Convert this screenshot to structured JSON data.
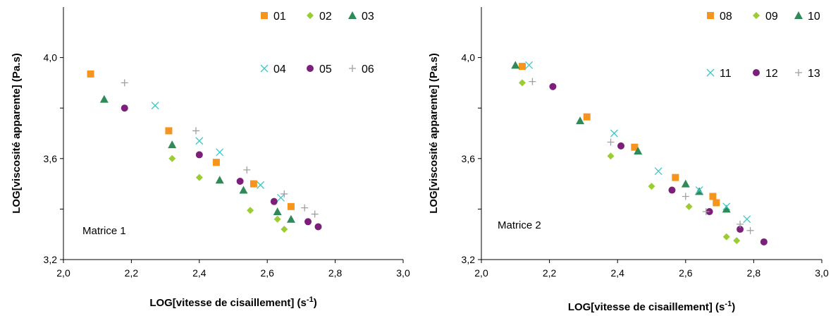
{
  "colors": {
    "s01": "#f7941d",
    "s02": "#9acd32",
    "s03": "#2e8b57",
    "s04": "#3cc8c8",
    "s05": "#7b1f7b",
    "s06": "#a0a0a0"
  },
  "chart_data": [
    {
      "type": "scatter",
      "annotation": "Matrice 1",
      "xlabel": "LOG[vitesse de cisaillement] (s",
      "xlabel_sup": "-1",
      "xlabel_end": ")",
      "ylabel": "LOG[viscosité apparente] (Pa.s)",
      "xlim": [
        2.0,
        3.0
      ],
      "ylim": [
        3.2,
        4.2
      ],
      "xticks": [
        "2,0",
        "2,2",
        "2,4",
        "2,6",
        "2,8",
        "3,0"
      ],
      "yticks": [
        "3,2",
        "3,6",
        "4,0"
      ],
      "grid": false,
      "legend_position": "top-right",
      "series": [
        {
          "name": "01",
          "marker": "square",
          "color_key": "s01",
          "points": [
            [
              2.08,
              3.935
            ],
            [
              2.31,
              3.71
            ],
            [
              2.45,
              3.585
            ],
            [
              2.56,
              3.5
            ],
            [
              2.67,
              3.41
            ]
          ]
        },
        {
          "name": "02",
          "marker": "diamond",
          "color_key": "s02",
          "points": [
            [
              2.32,
              3.6
            ],
            [
              2.4,
              3.525
            ],
            [
              2.55,
              3.395
            ],
            [
              2.63,
              3.36
            ],
            [
              2.65,
              3.32
            ]
          ]
        },
        {
          "name": "03",
          "marker": "triangle",
          "color_key": "s03",
          "points": [
            [
              2.12,
              3.835
            ],
            [
              2.32,
              3.655
            ],
            [
              2.46,
              3.515
            ],
            [
              2.53,
              3.475
            ],
            [
              2.63,
              3.39
            ],
            [
              2.67,
              3.36
            ]
          ]
        },
        {
          "name": "04",
          "marker": "x",
          "color_key": "s04",
          "points": [
            [
              2.27,
              3.81
            ],
            [
              2.4,
              3.67
            ],
            [
              2.46,
              3.625
            ],
            [
              2.58,
              3.495
            ],
            [
              2.64,
              3.445
            ]
          ]
        },
        {
          "name": "05",
          "marker": "circle",
          "color_key": "s05",
          "points": [
            [
              2.18,
              3.8
            ],
            [
              2.4,
              3.615
            ],
            [
              2.52,
              3.51
            ],
            [
              2.62,
              3.43
            ],
            [
              2.72,
              3.35
            ],
            [
              2.75,
              3.33
            ]
          ]
        },
        {
          "name": "06",
          "marker": "plus",
          "color_key": "s06",
          "points": [
            [
              2.18,
              3.9
            ],
            [
              2.39,
              3.71
            ],
            [
              2.54,
              3.555
            ],
            [
              2.65,
              3.46
            ],
            [
              2.71,
              3.405
            ],
            [
              2.74,
              3.38
            ]
          ]
        }
      ]
    },
    {
      "type": "scatter",
      "annotation": "Matrice 2",
      "xlabel": "LOG[vitesse de cisaillement] (s",
      "xlabel_sup": "-1",
      "xlabel_end": ")",
      "ylabel": "LOG[viscosité apparente] (Pa.s)",
      "xlim": [
        2.0,
        3.0
      ],
      "ylim": [
        3.2,
        4.2
      ],
      "xticks": [
        "2,0",
        "2,2",
        "2,4",
        "2,6",
        "2,8",
        "3,0"
      ],
      "yticks": [
        "3,2",
        "3,6",
        "4,0"
      ],
      "grid": false,
      "legend_position": "top-right",
      "series": [
        {
          "name": "08",
          "marker": "square",
          "color_key": "s01",
          "points": [
            [
              2.12,
              3.965
            ],
            [
              2.31,
              3.765
            ],
            [
              2.45,
              3.645
            ],
            [
              2.57,
              3.525
            ],
            [
              2.68,
              3.45
            ],
            [
              2.69,
              3.425
            ]
          ]
        },
        {
          "name": "09",
          "marker": "diamond",
          "color_key": "s02",
          "points": [
            [
              2.12,
              3.9
            ],
            [
              2.38,
              3.61
            ],
            [
              2.5,
              3.49
            ],
            [
              2.61,
              3.41
            ],
            [
              2.72,
              3.29
            ],
            [
              2.75,
              3.275
            ]
          ]
        },
        {
          "name": "10",
          "marker": "triangle",
          "color_key": "s03",
          "points": [
            [
              2.1,
              3.97
            ],
            [
              2.29,
              3.75
            ],
            [
              2.46,
              3.63
            ],
            [
              2.6,
              3.5
            ],
            [
              2.64,
              3.47
            ],
            [
              2.72,
              3.4
            ]
          ]
        },
        {
          "name": "11",
          "marker": "x",
          "color_key": "s04",
          "points": [
            [
              2.14,
              3.97
            ],
            [
              2.39,
              3.7
            ],
            [
              2.52,
              3.55
            ],
            [
              2.64,
              3.475
            ],
            [
              2.72,
              3.41
            ],
            [
              2.78,
              3.36
            ]
          ]
        },
        {
          "name": "12",
          "marker": "circle",
          "color_key": "s05",
          "points": [
            [
              2.21,
              3.885
            ],
            [
              2.41,
              3.65
            ],
            [
              2.56,
              3.475
            ],
            [
              2.67,
              3.39
            ],
            [
              2.76,
              3.32
            ],
            [
              2.83,
              3.27
            ]
          ]
        },
        {
          "name": "13",
          "marker": "plus",
          "color_key": "s06",
          "points": [
            [
              2.15,
              3.905
            ],
            [
              2.38,
              3.665
            ],
            [
              2.6,
              3.45
            ],
            [
              2.66,
              3.39
            ],
            [
              2.76,
              3.34
            ],
            [
              2.79,
              3.315
            ]
          ]
        }
      ]
    }
  ]
}
